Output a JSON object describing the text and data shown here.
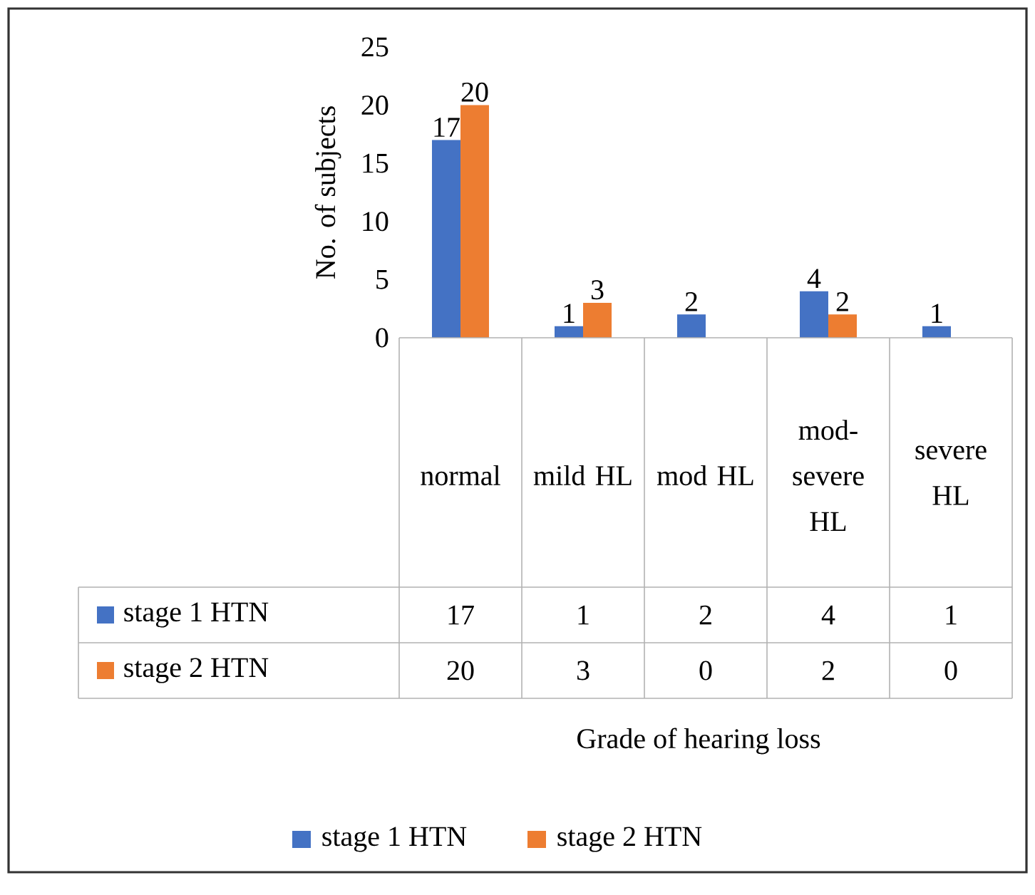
{
  "chart_data": {
    "type": "bar",
    "annotations": [
      "Grade of hearing loss",
      {
        "text": "17",
        "x": "normal",
        "y": 17
      },
      {
        "text": "20",
        "x": "normal",
        "y": 20
      },
      {
        "text": "1",
        "x": "mild HL",
        "y": 1
      },
      {
        "text": "3",
        "x": "mild HL",
        "y": 3
      },
      {
        "text": "2",
        "x": "mod HL",
        "y": 2
      },
      {
        "text": "4",
        "x": "mod-severe HL",
        "y": 4
      },
      {
        "text": "2",
        "x": "mod-severe HL",
        "y": 2
      },
      {
        "text": "1",
        "x": "severe HL",
        "y": 1
      }
    ],
    "ylabel": "No. of subjects",
    "categories": [
      "normal",
      "mild HL",
      "mod HL",
      "mod-severe HL",
      "severe HL"
    ],
    "series": [
      {
        "name": "stage 1 HTN",
        "color": "#4472c4",
        "values": [
          17,
          1,
          2,
          4,
          1
        ],
        "value_labels": [
          "17",
          "1",
          "2",
          "4",
          "1"
        ]
      },
      {
        "name": "stage 2 HTN",
        "color": "#ed7d31",
        "values": [
          20,
          3,
          0,
          2,
          0
        ],
        "value_labels": [
          "20",
          "3",
          "0",
          "2",
          "0"
        ]
      }
    ],
    "ylim": [
      0,
      25
    ],
    "yticks": [
      0,
      5,
      10,
      15,
      20,
      25
    ],
    "legend": "bottom"
  }
}
